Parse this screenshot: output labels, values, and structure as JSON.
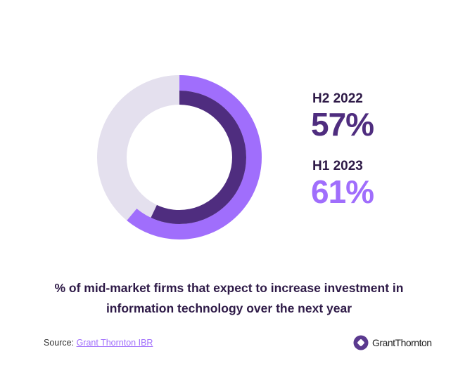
{
  "chart_data": {
    "type": "pie",
    "subtype": "concentric-donut",
    "title": "% of mid-market firms that expect to increase investment in information technology over the next year",
    "series": [
      {
        "name": "H2 2022",
        "value": 57,
        "label": "57%",
        "color": "#4f2d7f"
      },
      {
        "name": "H1 2023",
        "value": 61,
        "label": "61%",
        "color": "#a06efc"
      }
    ],
    "max": 100,
    "track_color": "#e4e0ee"
  },
  "caption": {
    "line1": "% of mid-market firms that expect to increase investment in",
    "line2": "information technology over the next year"
  },
  "source": {
    "prefix": "Source:",
    "link": "Grant Thornton IBR"
  },
  "logo": {
    "text": "GrantThornton"
  }
}
